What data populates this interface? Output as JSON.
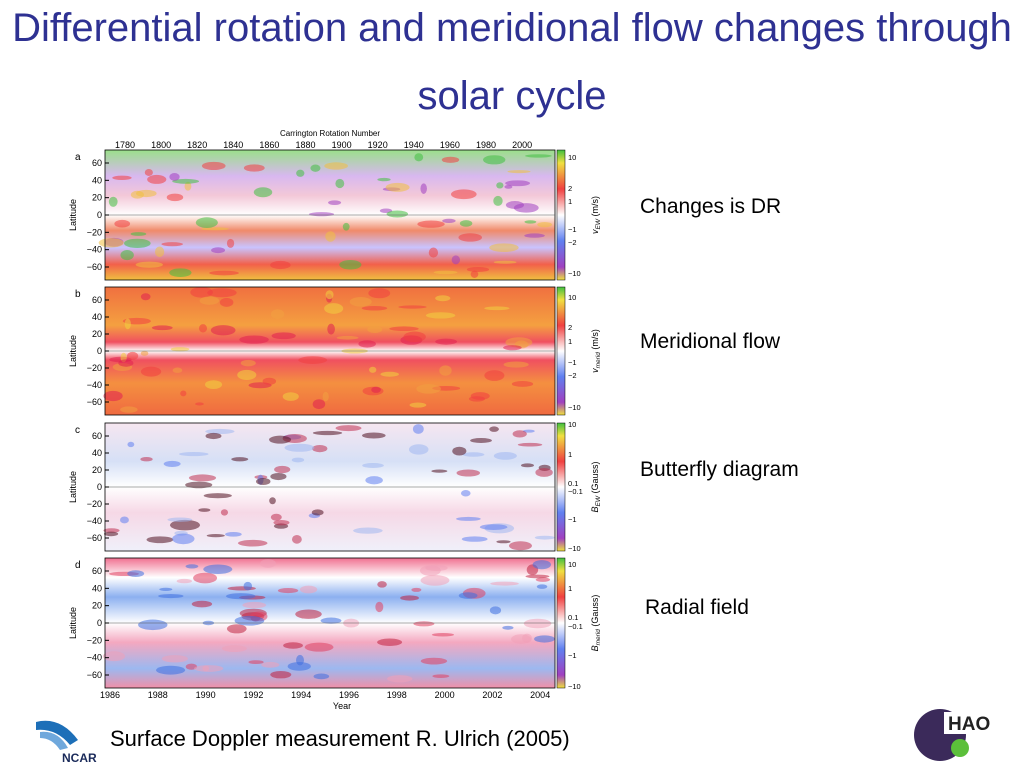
{
  "title": "Differential rotation and meridional flow changes through solar cycle",
  "figure": {
    "top_axis": {
      "label": "Carrington Rotation Number",
      "ticks": [
        "1780",
        "1800",
        "1820",
        "1840",
        "1860",
        "1880",
        "1900",
        "1920",
        "1940",
        "1960",
        "1980",
        "2000"
      ]
    },
    "bottom_axis": {
      "label": "Year",
      "ticks": [
        "1986",
        "1988",
        "1990",
        "1992",
        "1994",
        "1996",
        "1998",
        "2000",
        "2002",
        "2004"
      ]
    },
    "latitude_label": "Latitude",
    "latitude_ticks": [
      "60",
      "40",
      "20",
      "0",
      "−20",
      "−40",
      "−60"
    ],
    "panels": [
      {
        "letter": "a",
        "colorbar_ticks": [
          "10",
          "2",
          "1",
          "−1",
          "−2",
          "−10"
        ],
        "colorbar_label": {
          "symbol": "v",
          "subscript": "EW",
          "unit": "(m/s)"
        }
      },
      {
        "letter": "b",
        "colorbar_ticks": [
          "10",
          "2",
          "1",
          "−1",
          "−2",
          "−10"
        ],
        "colorbar_label": {
          "symbol": "v",
          "subscript": "merid",
          "unit": "(m/s)"
        }
      },
      {
        "letter": "c",
        "colorbar_ticks": [
          "10",
          "1",
          "0.1",
          "−0.1",
          "−1",
          "−10"
        ],
        "colorbar_label": {
          "symbol": "B",
          "subscript": "EW",
          "unit": "(Gauss)"
        }
      },
      {
        "letter": "d",
        "colorbar_ticks": [
          "10",
          "1",
          "0.1",
          "−0.1",
          "−1",
          "−10"
        ],
        "colorbar_label": {
          "symbol": "B",
          "subscript": "merid",
          "unit": "(Gauss)"
        }
      }
    ]
  },
  "annotations": [
    "Changes is DR",
    "Meridional flow",
    "Butterfly diagram",
    "Radial field"
  ],
  "footer": "Surface Doppler measurement R. Ulrich (2005)",
  "logos": {
    "left": "NCAR",
    "right": "HAO"
  }
}
